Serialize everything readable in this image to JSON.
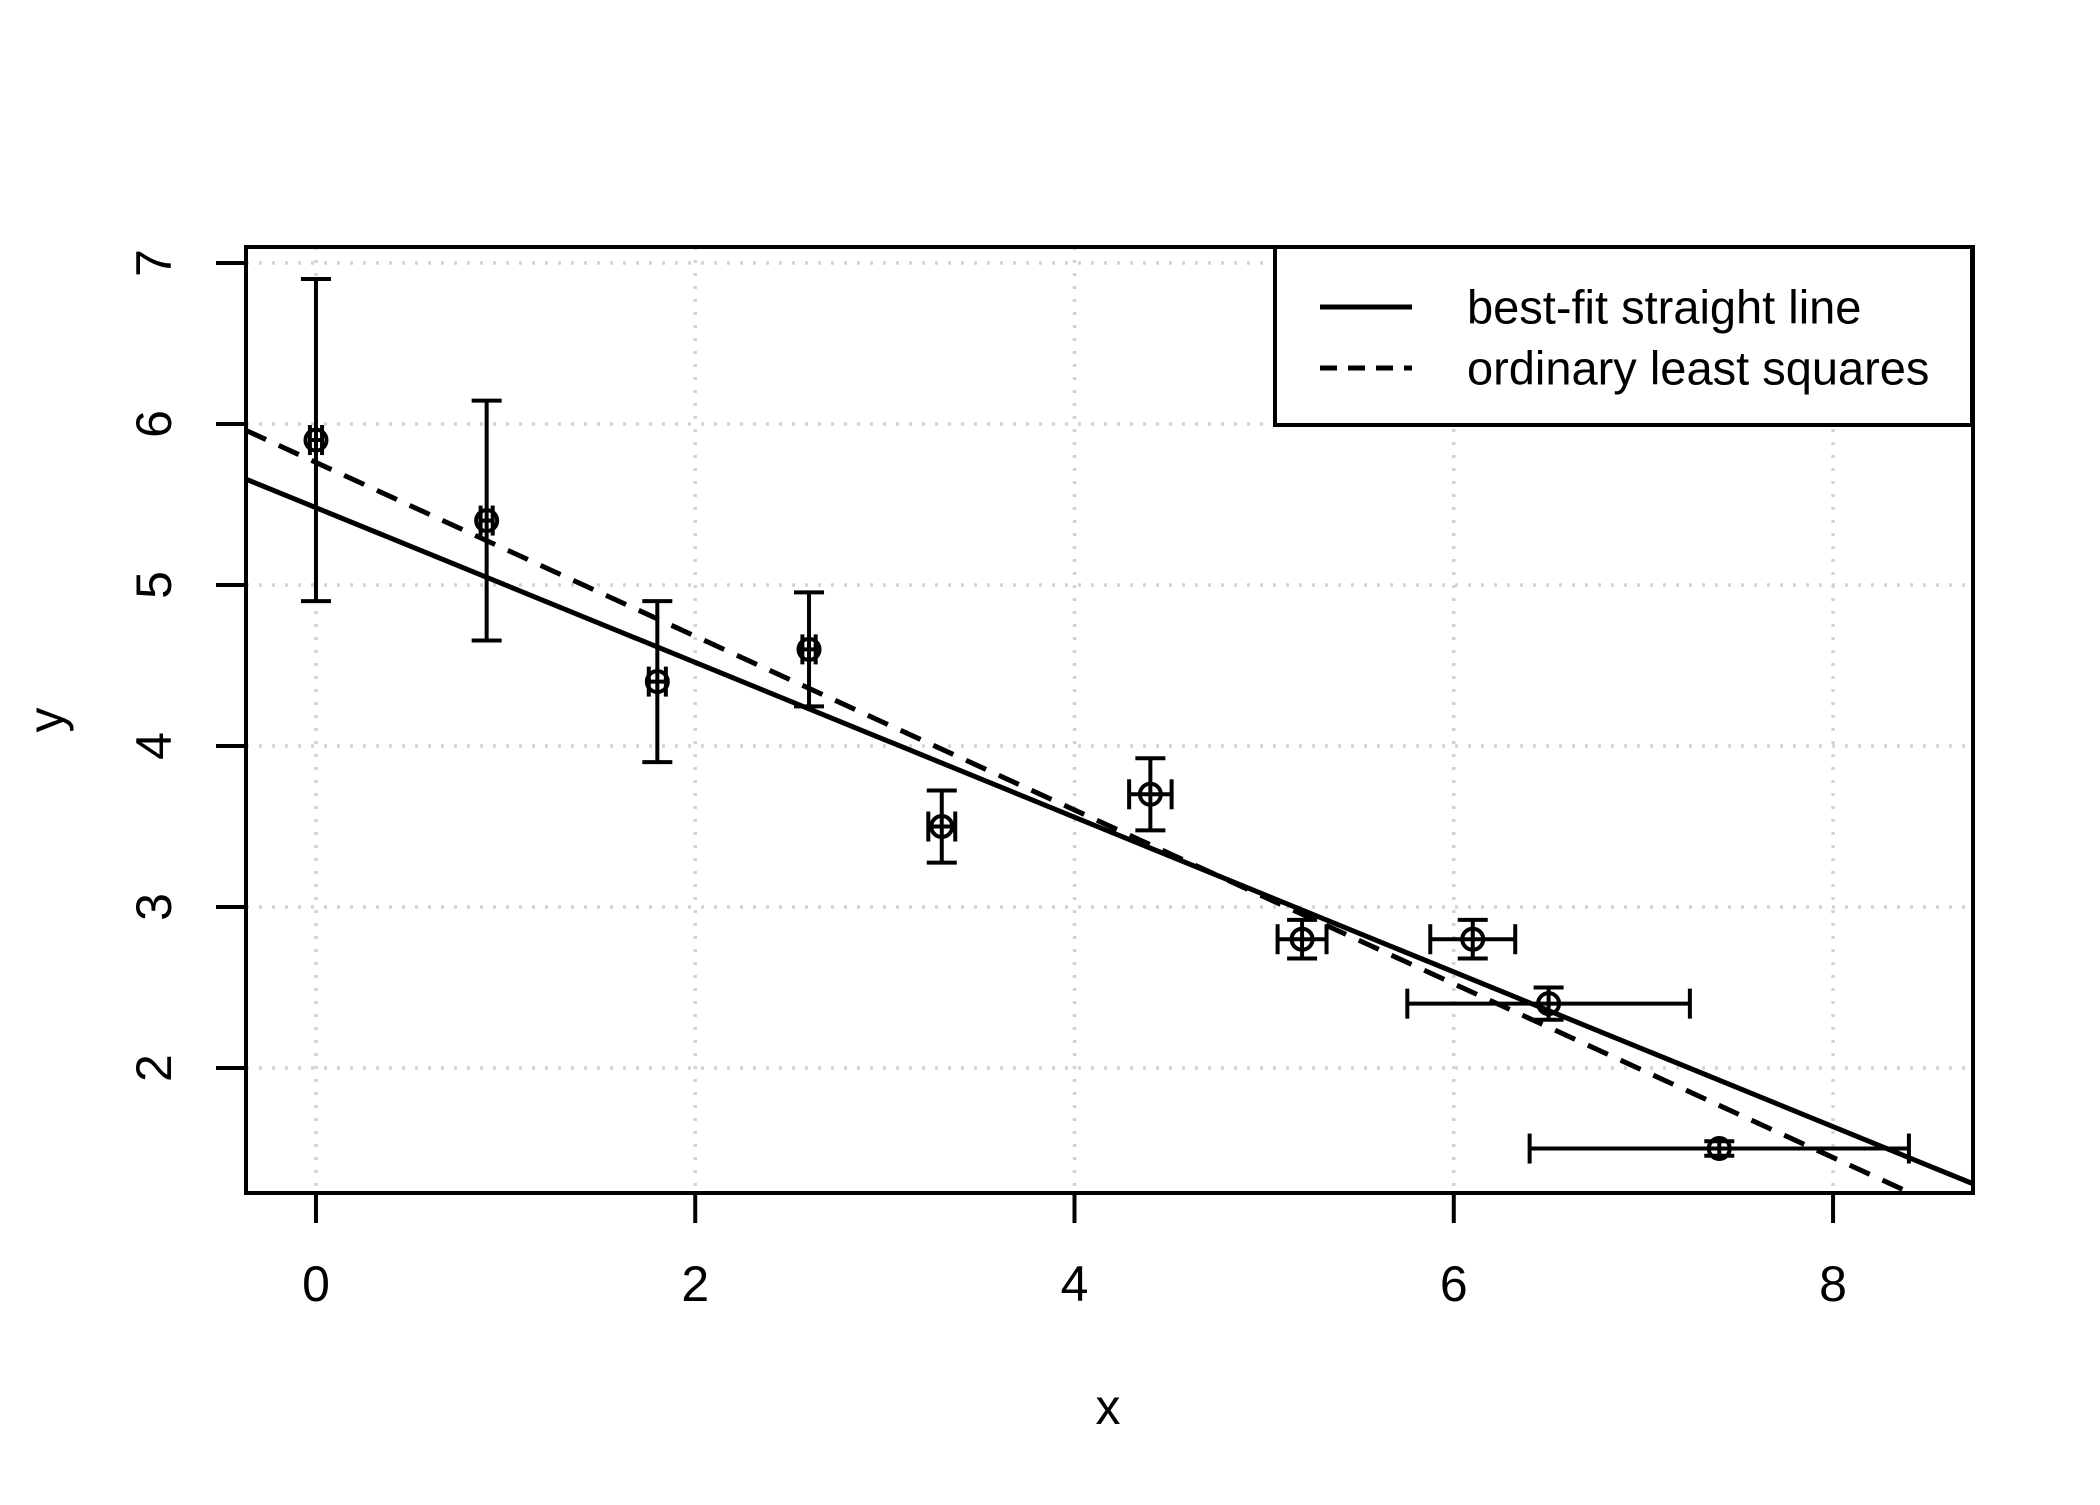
{
  "figure": {
    "xlabel": "x",
    "ylabel": "y"
  },
  "colors": {
    "foreground": "#000000",
    "background": "#ffffff",
    "grid": "#d3d3d3"
  },
  "legend": {
    "position": "topright",
    "items": [
      {
        "label": "best-fit straight line",
        "line_style": "solid"
      },
      {
        "label": "ordinary least squares",
        "line_style": "dashed"
      }
    ]
  },
  "chart_data": {
    "type": "scatter",
    "title": "",
    "xlabel": "x",
    "ylabel": "y",
    "xlim": [
      -0.369,
      8.738
    ],
    "ylim": [
      1.224,
      7.099
    ],
    "x_ticks": [
      0,
      2,
      4,
      6,
      8
    ],
    "y_ticks": [
      2,
      3,
      4,
      5,
      6,
      7
    ],
    "grid": "dotted",
    "legend_position": "topright",
    "marker": "open-circle",
    "error_bars": "x-and-y-with-caps",
    "points": [
      {
        "x": 0.0,
        "y": 5.9,
        "sx": 0.032,
        "sy": 1.0
      },
      {
        "x": 0.9,
        "y": 5.4,
        "sx": 0.032,
        "sy": 0.745
      },
      {
        "x": 1.8,
        "y": 4.4,
        "sx": 0.045,
        "sy": 0.5
      },
      {
        "x": 2.6,
        "y": 4.6,
        "sx": 0.035,
        "sy": 0.354
      },
      {
        "x": 3.3,
        "y": 3.5,
        "sx": 0.071,
        "sy": 0.224
      },
      {
        "x": 4.4,
        "y": 3.7,
        "sx": 0.112,
        "sy": 0.224
      },
      {
        "x": 5.2,
        "y": 2.8,
        "sx": 0.129,
        "sy": 0.12
      },
      {
        "x": 6.1,
        "y": 2.8,
        "sx": 0.224,
        "sy": 0.12
      },
      {
        "x": 6.5,
        "y": 2.4,
        "sx": 0.745,
        "sy": 0.1
      },
      {
        "x": 7.4,
        "y": 1.5,
        "sx": 1.0,
        "sy": 0.045
      }
    ],
    "lines": [
      {
        "name": "best-fit straight line",
        "style": "solid",
        "intercept": 5.48,
        "slope": -0.4805
      },
      {
        "name": "ordinary least squares",
        "style": "dashed",
        "intercept": 5.761,
        "slope": -0.5396
      }
    ]
  }
}
